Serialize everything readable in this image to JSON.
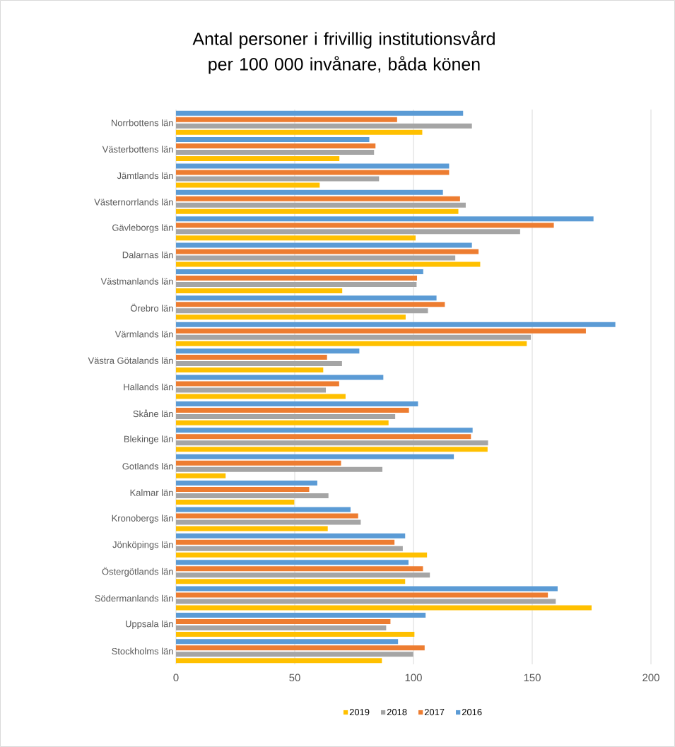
{
  "chart_data": {
    "type": "bar",
    "orientation": "horizontal",
    "title": "Antal  personer i frivillig institutionsvård per 100 000 invånare, båda könen",
    "categories": [
      "Norrbottens län",
      "Västerbottens län",
      "Jämtlands län",
      "Västernorrlands län",
      "Gävleborgs län",
      "Dalarnas län",
      "Västmanlands län",
      "Örebro län",
      "Värmlands län",
      "Västra Götalands län",
      "Hallands län",
      "Skåne län",
      "Blekinge län",
      "Gotlands län",
      "Kalmar län",
      "Kronobergs län",
      "Jönköpings län",
      "Östergötlands län",
      "Södermanlands län",
      "Uppsala län",
      "Stockholms län"
    ],
    "series": [
      {
        "name": "2019",
        "color": "#ffc000",
        "values": [
          103.7,
          68.8,
          60.5,
          118.9,
          100.9,
          128.1,
          70.0,
          96.7,
          147.7,
          62.0,
          71.4,
          89.5,
          131.2,
          20.9,
          49.8,
          63.9,
          105.7,
          96.5,
          175.0,
          100.4,
          86.7
        ]
      },
      {
        "name": "2018",
        "color": "#a5a5a5",
        "values": [
          124.6,
          83.4,
          85.5,
          122.0,
          144.9,
          117.6,
          101.3,
          106.1,
          149.4,
          69.9,
          63.1,
          92.3,
          131.4,
          86.9,
          64.2,
          77.8,
          95.5,
          106.9,
          159.9,
          88.5,
          99.9
        ]
      },
      {
        "name": "2017",
        "color": "#ed7d31",
        "values": [
          93.1,
          84.0,
          115.0,
          119.6,
          159.1,
          127.4,
          101.5,
          113.2,
          172.6,
          63.6,
          68.7,
          98.1,
          124.2,
          69.5,
          56.1,
          76.7,
          92.0,
          104.0,
          156.6,
          90.3,
          104.7
        ]
      },
      {
        "name": "2016",
        "color": "#5b9bd5",
        "values": [
          120.9,
          81.4,
          115.0,
          112.4,
          175.8,
          124.6,
          104.1,
          109.7,
          185.0,
          77.2,
          87.3,
          101.9,
          124.9,
          117.0,
          59.5,
          73.5,
          96.5,
          97.9,
          160.7,
          105.1,
          93.5
        ]
      }
    ],
    "xlim": [
      0,
      200
    ],
    "xticks": [
      0,
      50,
      100,
      150,
      200
    ],
    "grid": "x",
    "legend": "bottom"
  }
}
